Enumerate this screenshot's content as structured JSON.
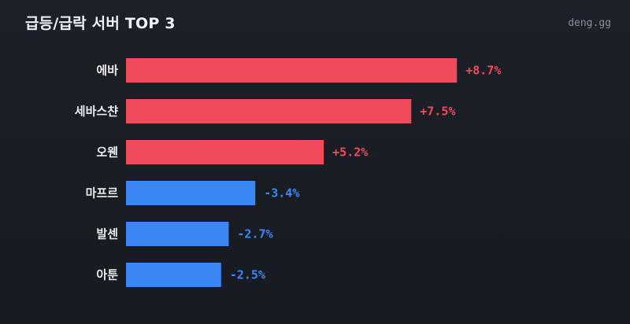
{
  "header": {
    "title": "급등/급락 서버 TOP 3",
    "brand": "deng.gg"
  },
  "colors": {
    "positive": "#f04b5a",
    "negative": "#3d87f5",
    "background": "#1b1e25"
  },
  "chart_data": {
    "type": "bar",
    "orientation": "horizontal",
    "title": "급등/급락 서버 TOP 3",
    "xlabel": "",
    "ylabel": "",
    "grid": false,
    "legend": "none",
    "categories": [
      "에바",
      "세바스챤",
      "오웬",
      "마프르",
      "발센",
      "아툰"
    ],
    "values": [
      8.7,
      7.5,
      5.2,
      -3.4,
      -2.7,
      -2.5
    ],
    "value_labels": [
      "+8.7%",
      "+7.5%",
      "+5.2%",
      "-3.4%",
      "-2.7%",
      "-2.5%"
    ],
    "unit": "%"
  }
}
